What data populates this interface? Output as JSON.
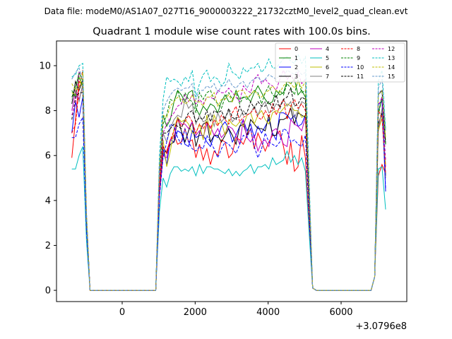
{
  "suptitle": "Data file: modeM0/AS1A07_027T16_9000003222_21732cztM0_level2_quad_clean.evt",
  "chart_data": {
    "type": "line",
    "title": "Quadrant 1 module wise count rates with 100.0s bins.",
    "xlabel": "",
    "ylabel": "",
    "x_offset_label": "+3.0796e8",
    "xlim": [
      -1800,
      7800
    ],
    "ylim": [
      -0.5,
      11.1
    ],
    "xticks": [
      0,
      2000,
      4000,
      6000
    ],
    "xtick_labels": [
      "0",
      "2000",
      "4000",
      "6000"
    ],
    "yticks": [
      0,
      2,
      4,
      6,
      8,
      10
    ],
    "ytick_labels": [
      "0",
      "2",
      "4",
      "6",
      "8",
      "10"
    ],
    "grid": false,
    "legend_position": "top-right",
    "legend_columns": 4,
    "x": [
      -1380,
      -1280,
      -1180,
      -1080,
      -980,
      -880,
      -780,
      -680,
      -580,
      -480,
      -380,
      -280,
      -180,
      -80,
      20,
      120,
      220,
      320,
      420,
      520,
      620,
      720,
      820,
      920,
      1020,
      1120,
      1220,
      1320,
      1420,
      1520,
      1620,
      1720,
      1820,
      1920,
      2020,
      2120,
      2220,
      2320,
      2420,
      2520,
      2620,
      2720,
      2820,
      2920,
      3020,
      3120,
      3220,
      3320,
      3420,
      3520,
      3620,
      3720,
      3820,
      3920,
      4020,
      4120,
      4220,
      4320,
      4420,
      4520,
      4620,
      4720,
      4820,
      4920,
      5020,
      5120,
      5220,
      5320,
      5420,
      5520,
      5620,
      5720,
      5820,
      5920,
      6020,
      6120,
      6220,
      6320,
      6420,
      6520,
      6620,
      6720,
      6820,
      6920,
      7020,
      7120,
      7220
    ],
    "series": [
      {
        "name": "0",
        "color": "#ff0000",
        "style": "solid",
        "profile": [
          5.9,
          7.6,
          9.3,
          9.1,
          6.1,
          6.2,
          6.7,
          6.9,
          6.5,
          6.6,
          7.2,
          6.6,
          6.7,
          5.9,
          6.5,
          5.8,
          6.3,
          5.6,
          6.2,
          6.0,
          6.7,
          6.6,
          5.9,
          6.1,
          6.8,
          6.7,
          6.5,
          6.9,
          7.2,
          6.3,
          7.0,
          6.6,
          6.2,
          6.6,
          6.9,
          6.9,
          7.1,
          6.4,
          5.6,
          6.6,
          5.3,
          5.5,
          6.9,
          5.9
        ],
        "tail": [
          5.1,
          5.6,
          5.2
        ]
      },
      {
        "name": "1",
        "color": "#008000",
        "style": "solid",
        "profile": [
          8.6,
          9.0,
          9.7,
          9.3,
          7.8,
          7.3,
          7.6,
          8.4,
          8.9,
          8.7,
          8.4,
          8.8,
          8.9,
          8.1,
          7.8,
          8.2,
          8.0,
          8.3,
          8.2,
          7.9,
          8.4,
          8.7,
          8.4,
          8.4,
          8.9,
          8.5,
          8.6,
          8.6,
          8.4,
          8.8,
          9.1,
          8.8,
          8.5,
          8.3,
          8.4,
          8.9,
          8.7,
          8.8,
          9.3,
          9.2,
          9.4,
          8.7,
          8.9,
          8.6
        ],
        "tail": [
          7.9,
          8.6,
          6.5
        ]
      },
      {
        "name": "2",
        "color": "#0000ff",
        "style": "solid",
        "profile": [
          7.0,
          8.4,
          7.7,
          8.6,
          6.3,
          5.6,
          6.7,
          6.6,
          7.1,
          7.0,
          6.5,
          6.4,
          7.1,
          6.8,
          6.9,
          6.9,
          6.6,
          6.4,
          6.9,
          6.8,
          7.3,
          7.5,
          7.2,
          6.6,
          6.9,
          7.3,
          7.6,
          7.1,
          7.4,
          6.8,
          7.3,
          7.0,
          7.3,
          7.6,
          7.0,
          6.7,
          7.9,
          7.9,
          7.8,
          7.6,
          7.8,
          7.3,
          7.4,
          7.8
        ],
        "tail": [
          8.3,
          8.4,
          4.4
        ]
      },
      {
        "name": "3",
        "color": "#000000",
        "style": "solid",
        "profile": [
          8.3,
          9.3,
          8.9,
          9.4,
          6.4,
          6.1,
          6.5,
          6.6,
          7.7,
          7.1,
          6.6,
          7.1,
          7.5,
          6.4,
          7.0,
          7.4,
          7.5,
          6.6,
          6.9,
          6.9,
          6.6,
          6.9,
          7.2,
          6.9,
          6.5,
          7.3,
          7.4,
          6.9,
          7.6,
          7.4,
          7.2,
          7.2,
          7.1,
          7.8,
          6.9,
          6.9,
          7.6,
          7.6,
          7.7,
          8.1,
          7.4,
          7.9,
          7.8,
          7.7
        ],
        "tail": [
          7.4,
          7.9,
          5.1
        ]
      },
      {
        "name": "4",
        "color": "#bf00bf",
        "style": "solid",
        "profile": [
          8.0,
          8.9,
          8.5,
          9.1,
          6.0,
          5.9,
          6.7,
          6.8,
          7.7,
          7.4,
          7.4,
          7.2,
          7.5,
          6.9,
          7.1,
          6.8,
          7.4,
          7.3,
          6.9,
          7.2,
          6.8,
          7.0,
          7.3,
          7.2,
          6.9,
          6.5,
          7.6,
          6.8,
          6.6,
          6.9,
          6.2,
          6.6,
          6.7,
          6.4,
          7.1,
          7.2,
          6.9,
          6.5,
          6.4,
          7.6,
          7.4,
          7.3,
          7.1,
          7.7
        ],
        "tail": [
          7.2,
          7.7,
          5.5
        ]
      },
      {
        "name": "5",
        "color": "#00bfbf",
        "style": "solid",
        "profile": [
          5.4,
          5.4,
          6.0,
          6.4,
          5.0,
          4.6,
          5.2,
          5.5,
          5.5,
          5.3,
          5.4,
          5.3,
          5.5,
          5.1,
          5.6,
          5.2,
          5.5,
          5.5,
          5.4,
          5.4,
          5.3,
          5.2,
          5.4,
          5.1,
          5.3,
          5.1,
          5.3,
          5.4,
          5.6,
          5.2,
          5.5,
          5.5,
          5.6,
          5.4,
          5.9,
          5.6,
          5.7,
          5.8,
          6.2,
          5.7,
          6.0,
          5.6,
          5.9,
          5.3
        ],
        "tail": [
          5.4,
          5.5,
          3.6
        ]
      },
      {
        "name": "6",
        "color": "#bfbf00",
        "style": "solid",
        "profile": [
          8.8,
          8.7,
          9.5,
          9.0,
          6.7,
          5.5,
          6.2,
          7.2,
          7.7,
          7.5,
          7.6,
          7.4,
          7.0,
          7.0,
          7.4,
          6.7,
          7.8,
          6.9,
          7.8,
          7.4,
          7.5,
          6.9,
          7.6,
          7.4,
          7.3,
          7.5,
          7.3,
          7.8,
          7.9,
          7.4,
          7.8,
          8.0,
          7.6,
          7.4,
          7.9,
          8.0,
          7.9,
          8.1,
          8.3,
          8.2,
          8.0,
          8.0,
          7.7,
          7.8
        ],
        "tail": [
          7.1,
          7.7,
          5.6
        ]
      },
      {
        "name": "7",
        "color": "#808080",
        "style": "solid",
        "profile": [
          8.5,
          8.8,
          8.4,
          9.2,
          7.0,
          6.6,
          7.2,
          7.6,
          7.8,
          7.7,
          8.5,
          8.1,
          8.3,
          7.4,
          7.8,
          7.5,
          7.6,
          7.9,
          7.3,
          7.9,
          7.5,
          7.7,
          8.0,
          7.5,
          7.7,
          7.7,
          8.0,
          7.8,
          7.9,
          8.2,
          7.8,
          8.2,
          8.4,
          7.9,
          8.0,
          8.3,
          8.2,
          8.5,
          8.2,
          8.4,
          7.7,
          8.0,
          8.4,
          8.3
        ],
        "tail": [
          7.2,
          8.1,
          5.0
        ]
      },
      {
        "name": "8",
        "color": "#ff0000",
        "style": "dashed",
        "profile": [
          7.0,
          7.4,
          9.0,
          9.8,
          6.4,
          6.1,
          6.7,
          7.1,
          7.6,
          7.3,
          7.5,
          7.8,
          7.5,
          7.0,
          7.4,
          7.2,
          7.5,
          7.2,
          7.6,
          7.3,
          7.8,
          7.6,
          7.4,
          7.9,
          8.2,
          7.5,
          7.7,
          7.8,
          7.9,
          8.1,
          7.7,
          7.6,
          8.0,
          7.7,
          8.3,
          7.8,
          8.2,
          8.5,
          7.6,
          8.2,
          8.5,
          8.1,
          8.3,
          8.0
        ],
        "tail": [
          8.0,
          7.7,
          5.2
        ]
      },
      {
        "name": "9",
        "color": "#008000",
        "style": "dashed",
        "profile": [
          8.9,
          8.6,
          9.5,
          9.1,
          7.4,
          7.8,
          8.5,
          8.4,
          8.9,
          8.3,
          8.8,
          8.5,
          8.4,
          7.9,
          8.8,
          8.5,
          8.8,
          8.9,
          8.5,
          8.3,
          8.1,
          8.6,
          8.8,
          8.5,
          8.8,
          8.3,
          8.6,
          8.5,
          8.7,
          8.9,
          8.8,
          8.3,
          8.8,
          9.1,
          8.7,
          8.6,
          8.9,
          8.7,
          9.2,
          9.0,
          8.7,
          9.4,
          8.8,
          8.9
        ],
        "tail": [
          7.8,
          8.6,
          6.5
        ]
      },
      {
        "name": "10",
        "color": "#0000ff",
        "style": "dashed",
        "profile": [
          6.8,
          6.8,
          7.4,
          7.7,
          5.9,
          6.6,
          7.4,
          7.3,
          6.8,
          6.5,
          7.2,
          6.6,
          6.3,
          6.2,
          6.4,
          6.3,
          6.9,
          6.6,
          6.3,
          5.9,
          6.3,
          6.6,
          6.5,
          6.3,
          6.1,
          6.5,
          6.9,
          6.8,
          7.2,
          6.4,
          5.9,
          6.3,
          7.0,
          6.6,
          6.5,
          6.4,
          6.6,
          7.2,
          7.1,
          6.6,
          6.7,
          6.5,
          6.4,
          6.9
        ],
        "tail": [
          8.8,
          8.9,
          4.5
        ]
      },
      {
        "name": "11",
        "color": "#000000",
        "style": "dashed",
        "profile": [
          7.6,
          8.6,
          8.8,
          8.8,
          7.0,
          7.0,
          7.2,
          7.4,
          7.3,
          7.2,
          7.6,
          7.9,
          8.0,
          7.5,
          7.7,
          7.6,
          8.0,
          7.5,
          8.0,
          7.9,
          8.0,
          7.6,
          8.1,
          7.7,
          7.6,
          8.2,
          7.8,
          7.9,
          8.4,
          8.1,
          8.4,
          8.2,
          8.2,
          8.4,
          8.1,
          8.7,
          8.1,
          8.5,
          8.6,
          9.0,
          8.2,
          8.3,
          8.6,
          8.5
        ],
        "tail": [
          8.7,
          8.9,
          6.6
        ]
      },
      {
        "name": "12",
        "color": "#bf00bf",
        "style": "dashed",
        "profile": [
          7.8,
          8.3,
          9.7,
          9.6,
          7.0,
          7.4,
          7.7,
          7.9,
          8.2,
          8.3,
          8.7,
          8.4,
          8.7,
          8.3,
          8.5,
          8.3,
          8.6,
          8.6,
          8.5,
          8.9,
          8.8,
          8.8,
          9.0,
          8.8,
          8.6,
          8.4,
          9.1,
          8.9,
          8.8,
          9.4,
          9.6,
          9.2,
          9.4,
          9.2,
          9.1,
          8.9,
          9.4,
          9.8,
          9.4,
          9.6,
          9.3,
          9.7,
          9.2,
          9.4
        ],
        "tail": [
          8.2,
          8.6,
          5.8
        ]
      },
      {
        "name": "13",
        "color": "#00bfbf",
        "style": "dashed",
        "profile": [
          9.5,
          9.6,
          10.0,
          10.1,
          8.5,
          9.5,
          9.3,
          9.4,
          9.3,
          9.1,
          9.5,
          9.3,
          9.8,
          8.6,
          9.2,
          9.6,
          9.8,
          9.3,
          9.5,
          9.4,
          9.1,
          9.3,
          10.1,
          9.7,
          9.6,
          9.4,
          9.9,
          9.7,
          9.9,
          9.9,
          10.1,
          9.7,
          9.9,
          10.3,
          9.9,
          9.9,
          10.1,
          10.3,
          10.4,
          10.2,
          10.1,
          10.5,
          10.1,
          10.4
        ],
        "tail": [
          9.3,
          9.8,
          7.2
        ]
      },
      {
        "name": "14",
        "color": "#bfbf00",
        "style": "dashed",
        "profile": [
          9.2,
          8.9,
          9.0,
          9.7,
          7.8,
          7.7,
          8.2,
          8.4,
          8.6,
          8.5,
          8.3,
          8.4,
          8.7,
          8.4,
          8.4,
          8.2,
          8.6,
          8.6,
          8.8,
          8.2,
          8.5,
          8.5,
          8.7,
          8.4,
          8.8,
          8.9,
          8.9,
          8.6,
          8.7,
          8.9,
          8.7,
          8.6,
          8.8,
          8.9,
          9.1,
          8.9,
          8.8,
          9.1,
          9.3,
          9.2,
          9.0,
          9.3,
          9.0,
          9.3
        ],
        "tail": [
          8.7,
          8.9,
          6.8
        ]
      },
      {
        "name": "15",
        "color": "#6699cc",
        "style": "dashed",
        "profile": [
          9.4,
          9.7,
          9.9,
          9.3,
          8.0,
          8.4,
          8.7,
          8.9,
          9.0,
          8.9,
          9.0,
          9.0,
          9.2,
          8.5,
          8.9,
          8.9,
          9.1,
          9.0,
          9.2,
          8.8,
          9.1,
          9.1,
          9.4,
          9.1,
          9.0,
          9.2,
          9.3,
          9.0,
          9.3,
          9.4,
          9.5,
          9.3,
          9.4,
          9.6,
          9.5,
          9.4,
          9.6,
          9.5,
          9.8,
          9.7,
          9.6,
          9.8,
          9.6,
          9.7
        ],
        "tail": [
          9.0,
          9.4,
          7.1
        ]
      }
    ]
  }
}
